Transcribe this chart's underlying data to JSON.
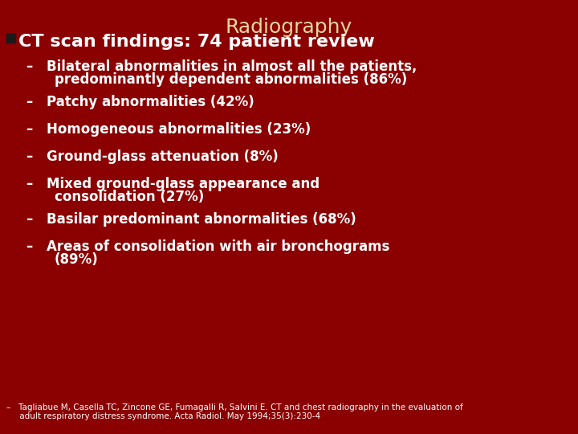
{
  "title": "Radiography",
  "title_color": "#E8D8A0",
  "background_color": "#8B0000",
  "bullet_header": "CT scan findings: 74 patient review",
  "text_color": "#FFFFFF",
  "bullet_items_line1": [
    "Bilateral abnormalities in almost all the patients,",
    "Patchy abnormalities (42%)",
    "Homogeneous abnormalities (23%)",
    "Ground-glass attenuation (8%)",
    "Mixed ground-glass appearance and",
    "Basilar predominant abnormalities (68%)",
    "Areas of consolidation with air bronchograms"
  ],
  "bullet_items_line2": [
    "predominantly dependent abnormalities (86%)",
    "",
    "",
    "",
    "consolidation (27%)",
    "",
    "(89%)"
  ],
  "footnote_line1": "–   Tagliabue M, Casella TC, Zincone GE, Fumagalli R, Salvini E. CT and chest radiography in the evaluation of",
  "footnote_line2": "     adult respiratory distress syndrome. Acta Radiol. May 1994;35(3):230-4",
  "title_fontsize": 18,
  "header_fontsize": 16,
  "item_fontsize": 12,
  "footnote_fontsize": 7.5
}
